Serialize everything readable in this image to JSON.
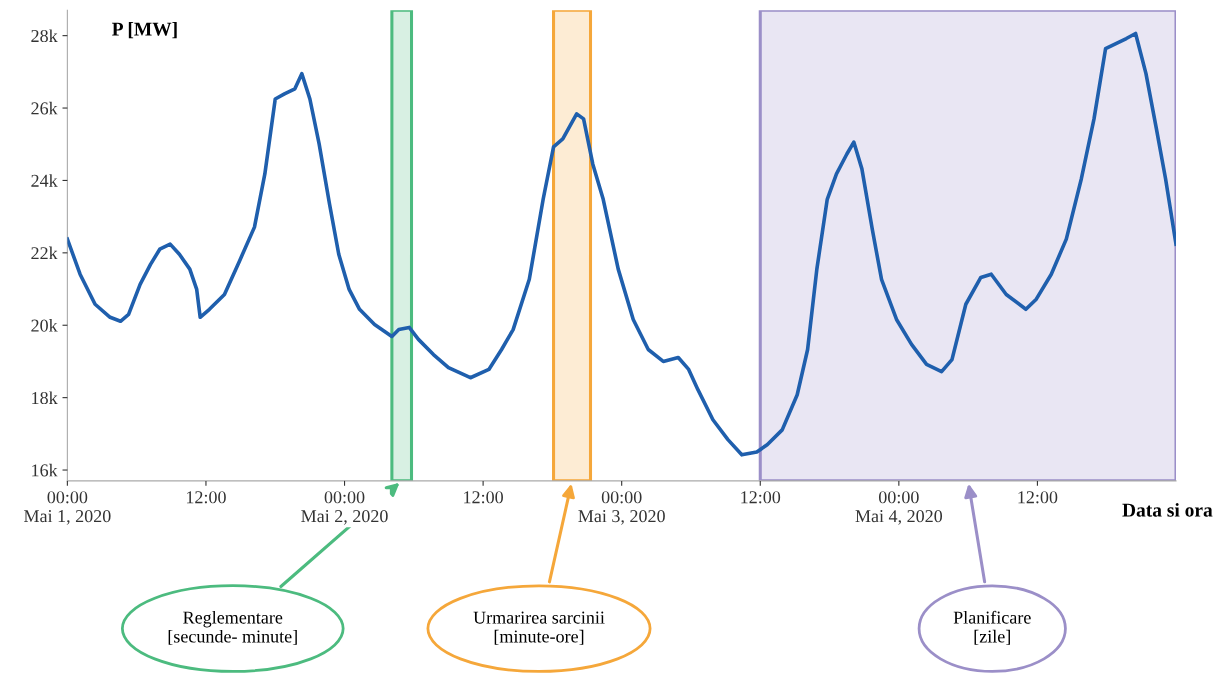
{
  "chart_data": {
    "type": "line",
    "ylabel": "P [MW]",
    "xlabel": "Data si ora",
    "xlim": [
      "2020-05-01T00:00",
      "2020-05-05T00:00"
    ],
    "ylim": [
      15700,
      28700
    ],
    "xticks": [
      {
        "value": "2020-05-01T00:00",
        "label": "00:00\nMai 1, 2020"
      },
      {
        "value": "2020-05-01T12:00",
        "label": "12:00"
      },
      {
        "value": "2020-05-02T00:00",
        "label": "00:00\nMai 2, 2020"
      },
      {
        "value": "2020-05-02T12:00",
        "label": "12:00"
      },
      {
        "value": "2020-05-03T00:00",
        "label": "00:00\nMai 3, 2020"
      },
      {
        "value": "2020-05-03T12:00",
        "label": "12:00"
      },
      {
        "value": "2020-05-04T00:00",
        "label": "00:00\nMai 4, 2020"
      },
      {
        "value": "2020-05-04T12:00",
        "label": "12:00"
      }
    ],
    "yticks": [
      {
        "value": 16000,
        "label": "16k"
      },
      {
        "value": 18000,
        "label": "18k"
      },
      {
        "value": 20000,
        "label": "20k"
      },
      {
        "value": 22000,
        "label": "22k"
      },
      {
        "value": 24000,
        "label": "24k"
      },
      {
        "value": 26000,
        "label": "26k"
      },
      {
        "value": 28000,
        "label": "28k"
      }
    ],
    "grid": false,
    "legend": false,
    "x": [
      "2020-05-01T00:00",
      "2020-05-01T01:06",
      "2020-05-01T02:24",
      "2020-05-01T03:42",
      "2020-05-01T04:36",
      "2020-05-01T05:18",
      "2020-05-01T06:18",
      "2020-05-01T07:12",
      "2020-05-01T08:00",
      "2020-05-01T08:54",
      "2020-05-01T09:42",
      "2020-05-01T10:36",
      "2020-05-01T11:12",
      "2020-05-01T11:30",
      "2020-05-01T12:18",
      "2020-05-01T13:36",
      "2020-05-01T14:54",
      "2020-05-01T16:12",
      "2020-05-01T17:06",
      "2020-05-01T18:00",
      "2020-05-01T18:48",
      "2020-05-01T19:42",
      "2020-05-01T20:18",
      "2020-05-01T21:00",
      "2020-05-01T21:48",
      "2020-05-01T22:42",
      "2020-05-01T23:30",
      "2020-05-02T00:24",
      "2020-05-02T01:18",
      "2020-05-02T02:36",
      "2020-05-02T04:06",
      "2020-05-02T04:42",
      "2020-05-02T05:36",
      "2020-05-02T06:24",
      "2020-05-02T07:42",
      "2020-05-02T09:00",
      "2020-05-02T10:54",
      "2020-05-02T12:30",
      "2020-05-02T13:36",
      "2020-05-02T14:36",
      "2020-05-02T16:00",
      "2020-05-02T17:12",
      "2020-05-02T18:06",
      "2020-05-02T18:54",
      "2020-05-02T20:06",
      "2020-05-02T20:42",
      "2020-05-02T21:30",
      "2020-05-02T22:24",
      "2020-05-02T23:42",
      "2020-05-03T01:00",
      "2020-05-03T02:18",
      "2020-05-03T03:36",
      "2020-05-03T04:54",
      "2020-05-03T05:48",
      "2020-05-03T06:36",
      "2020-05-03T07:54",
      "2020-05-03T09:12",
      "2020-05-03T10:24",
      "2020-05-03T11:42",
      "2020-05-03T12:36",
      "2020-05-03T13:54",
      "2020-05-03T15:12",
      "2020-05-03T16:06",
      "2020-05-03T16:54",
      "2020-05-03T17:48",
      "2020-05-03T18:36",
      "2020-05-03T19:30",
      "2020-05-03T20:06",
      "2020-05-03T20:48",
      "2020-05-03T21:42",
      "2020-05-03T22:30",
      "2020-05-03T23:48",
      "2020-05-04T01:06",
      "2020-05-04T02:24",
      "2020-05-04T03:42",
      "2020-05-04T04:36",
      "2020-05-04T05:48",
      "2020-05-04T07:06",
      "2020-05-04T08:00",
      "2020-05-04T09:18",
      "2020-05-04T11:00",
      "2020-05-04T11:54",
      "2020-05-04T13:12",
      "2020-05-04T14:30",
      "2020-05-04T15:48",
      "2020-05-04T16:54",
      "2020-05-04T17:54",
      "2020-05-04T18:48",
      "2020-05-04T19:42",
      "2020-05-04T20:30",
      "2020-05-04T21:24",
      "2020-05-04T22:18",
      "2020-05-04T23:06",
      "2020-05-05T00:00"
    ],
    "series": [
      {
        "color": "#1f5fad",
        "values": [
          22380,
          21410,
          20580,
          20220,
          20110,
          20300,
          21130,
          21680,
          22100,
          22240,
          21960,
          21550,
          20990,
          20220,
          20440,
          20850,
          21770,
          22710,
          24180,
          26250,
          26390,
          26530,
          26950,
          26250,
          25010,
          23350,
          21960,
          20990,
          20440,
          20020,
          19690,
          19880,
          19940,
          19610,
          19190,
          18830,
          18550,
          18780,
          19330,
          19880,
          21270,
          23480,
          24930,
          25150,
          25840,
          25700,
          24450,
          23480,
          21550,
          20160,
          19330,
          19000,
          19110,
          18780,
          18220,
          17390,
          16840,
          16420,
          16500,
          16700,
          17110,
          18080,
          19330,
          21550,
          23480,
          24180,
          24730,
          25060,
          24320,
          22650,
          21270,
          20160,
          19470,
          18920,
          18720,
          19050,
          20580,
          21320,
          21410,
          20850,
          20440,
          20720,
          21410,
          22380,
          24040,
          25700,
          27640,
          27780,
          27920,
          28060,
          26950,
          25430,
          24040,
          22240
        ]
      }
    ],
    "marker": "none",
    "line_style": "solid",
    "bands": [
      {
        "axis": "x",
        "from": "2020-05-02T04:06",
        "to": "2020-05-02T05:48",
        "color": "#4cbb7f"
      },
      {
        "axis": "x",
        "from": "2020-05-02T18:06",
        "to": "2020-05-02T21:18",
        "color": "#f5a73a"
      },
      {
        "axis": "x",
        "from": "2020-05-03T12:00",
        "to": "2020-05-05T00:00",
        "color": "#9b8fc8"
      }
    ],
    "annotations": [
      "Reglementare\n[secunde- minute]",
      "Urmarirea sarcinii\n[minute-ore]",
      "Planificare\n[zile]"
    ]
  }
}
